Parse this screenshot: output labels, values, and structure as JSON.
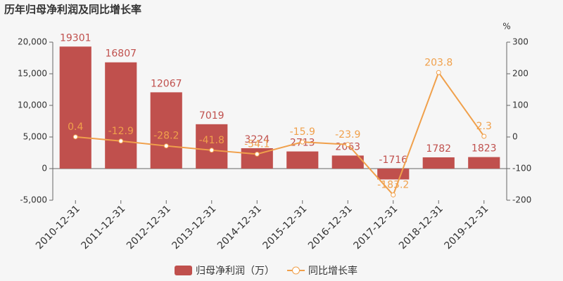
{
  "chart_data": {
    "type": "bar",
    "title": "历年归母净利润及同比增长率",
    "categories": [
      "2010-12-31",
      "2011-12-31",
      "2012-12-31",
      "2013-12-31",
      "2014-12-31",
      "2015-12-31",
      "2016-12-31",
      "2017-12-31",
      "2018-12-31",
      "2019-12-31"
    ],
    "series": [
      {
        "name": "归母净利润（万）",
        "type": "bar",
        "color": "#c0504d",
        "values": [
          19301,
          16807,
          12067,
          7019,
          3224,
          2713,
          2063,
          -1716,
          1782,
          1823
        ]
      },
      {
        "name": "同比增长率",
        "type": "line",
        "axis": "y2",
        "color": "#f0a04b",
        "values": [
          0.4,
          -12.9,
          -28.2,
          -41.8,
          -54.1,
          -15.9,
          -23.9,
          -183.2,
          203.8,
          2.3
        ]
      }
    ],
    "ylim": [
      -5000,
      20000
    ],
    "yticks": [
      {
        "value": -5000,
        "label": "-5,000"
      },
      0,
      {
        "value": 5000,
        "label": "5,000"
      },
      {
        "value": 10000,
        "label": "10,000"
      },
      {
        "value": 15000,
        "label": "15,000"
      },
      {
        "value": 20000,
        "label": "20,000"
      }
    ],
    "y2lim": [
      -200,
      300
    ],
    "y2ticks": [
      -200,
      -100,
      0,
      100,
      200,
      300
    ],
    "y2label": "%",
    "grid": false
  }
}
